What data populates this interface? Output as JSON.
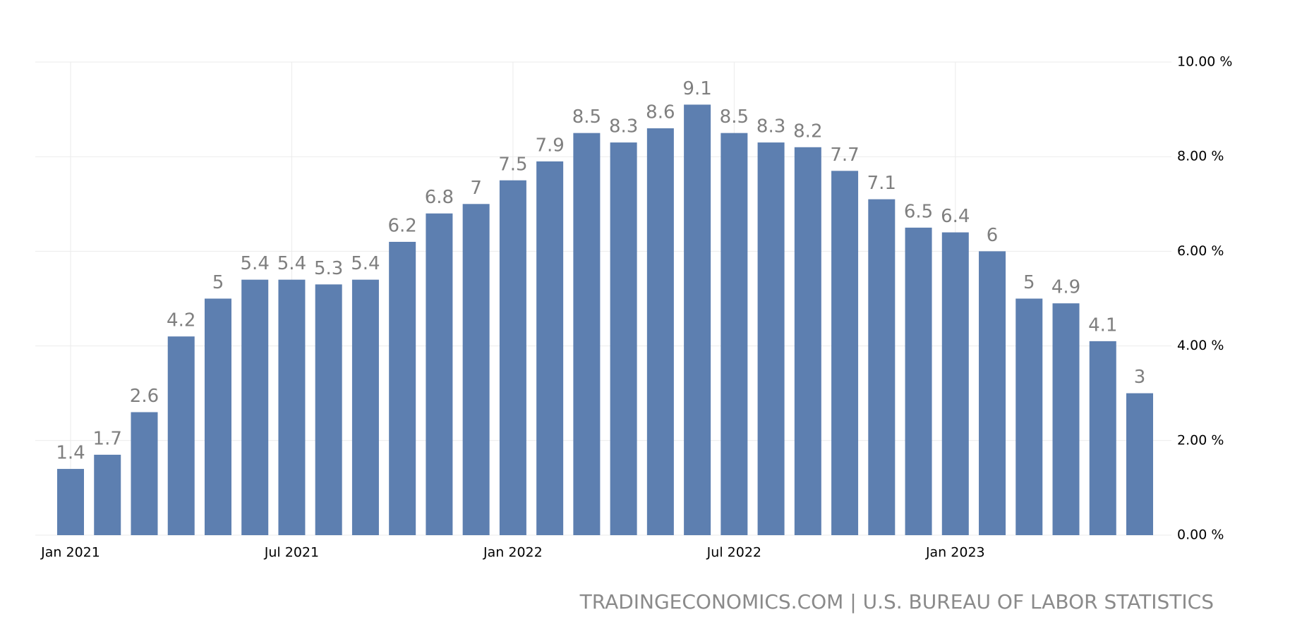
{
  "chart_data": {
    "type": "bar",
    "categories": [
      "Jan 2021",
      null,
      null,
      null,
      null,
      null,
      "Jul 2021",
      null,
      null,
      null,
      null,
      null,
      "Jan 2022",
      null,
      null,
      null,
      null,
      null,
      "Jul 2022",
      null,
      null,
      null,
      null,
      null,
      "Jan 2023",
      null,
      null,
      null,
      null,
      null
    ],
    "values": [
      1.4,
      1.7,
      2.6,
      4.2,
      5,
      5.4,
      5.4,
      5.3,
      5.4,
      6.2,
      6.8,
      7,
      7.5,
      7.9,
      8.5,
      8.3,
      8.6,
      9.1,
      8.5,
      8.3,
      8.2,
      7.7,
      7.1,
      6.5,
      6.4,
      6,
      5,
      4.9,
      4.1,
      3
    ],
    "color": "#5d7fb0",
    "ylim": [
      0,
      10
    ],
    "yticks": [
      {
        "value": 0,
        "label": "0.00 %"
      },
      {
        "value": 2,
        "label": "2.00 %"
      },
      {
        "value": 4,
        "label": "4.00 %"
      },
      {
        "value": 6,
        "label": "6.00 %"
      },
      {
        "value": 8,
        "label": "8.00 %"
      },
      {
        "value": 10,
        "label": "10.00 %"
      }
    ],
    "grid": true,
    "source": "TRADINGECONOMICS.COM | U.S. BUREAU OF LABOR STATISTICS"
  }
}
